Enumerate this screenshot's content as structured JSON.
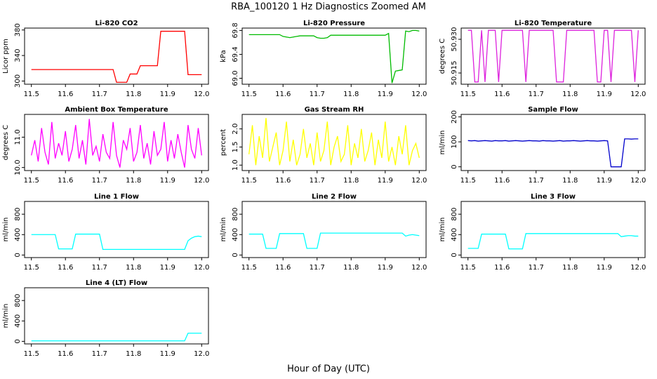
{
  "title": "RBA_100120  1 Hz Diagnostics Zoomed AM",
  "xlabel": "Hour of Day (UTC)",
  "chart_data": [
    {
      "type": "line",
      "title": "Li-820 CO2",
      "ylabel": "Licor ppm",
      "color": "#ff0000",
      "x": [
        11.5,
        11.51,
        11.52,
        11.53,
        11.54,
        11.55,
        11.56,
        11.57,
        11.58,
        11.59,
        11.6,
        11.61,
        11.62,
        11.63,
        11.64,
        11.65,
        11.66,
        11.67,
        11.68,
        11.69,
        11.7,
        11.71,
        11.72,
        11.73,
        11.74,
        11.75,
        11.76,
        11.77,
        11.78,
        11.79,
        11.8,
        11.81,
        11.82,
        11.83,
        11.84,
        11.85,
        11.86,
        11.87,
        11.88,
        11.89,
        11.9,
        11.91,
        11.92,
        11.93,
        11.94,
        11.95,
        11.96,
        11.97,
        11.98,
        11.99,
        12.0
      ],
      "values": [
        318,
        318,
        318,
        318,
        318,
        318,
        318,
        318,
        318,
        318,
        318,
        318,
        318,
        318,
        318,
        318,
        318,
        318,
        318,
        318,
        318,
        318,
        318,
        318,
        318,
        298,
        298,
        298,
        298,
        311,
        311,
        311,
        324,
        324,
        324,
        324,
        324,
        324,
        378,
        378,
        378,
        378,
        378,
        378,
        378,
        378,
        310,
        310,
        310,
        310,
        310
      ],
      "xlim": [
        11.48,
        12.02
      ],
      "xticks": [
        11.5,
        11.6,
        11.7,
        11.8,
        11.9,
        {
          "value": 12,
          "label": "12.0"
        }
      ],
      "ylim": [
        295,
        383
      ],
      "yticks": [
        300,
        340,
        380
      ]
    },
    {
      "type": "line",
      "title": "Li-820 Pressure",
      "ylabel": "kPa",
      "color": "#00bb00",
      "x": [
        11.5,
        11.51,
        11.52,
        11.53,
        11.54,
        11.55,
        11.56,
        11.57,
        11.58,
        11.59,
        11.6,
        11.61,
        11.62,
        11.63,
        11.64,
        11.65,
        11.66,
        11.67,
        11.68,
        11.69,
        11.7,
        11.71,
        11.72,
        11.73,
        11.74,
        11.75,
        11.76,
        11.77,
        11.78,
        11.79,
        11.8,
        11.81,
        11.82,
        11.83,
        11.84,
        11.85,
        11.86,
        11.87,
        11.88,
        11.89,
        11.9,
        11.91,
        11.92,
        11.93,
        11.94,
        11.95,
        11.96,
        11.97,
        11.98,
        11.99,
        12.0
      ],
      "values": [
        69.73,
        69.73,
        69.73,
        69.73,
        69.73,
        69.73,
        69.73,
        69.73,
        69.73,
        69.73,
        69.7,
        69.69,
        69.68,
        69.69,
        69.7,
        69.71,
        69.71,
        69.71,
        69.71,
        69.71,
        69.68,
        69.67,
        69.67,
        69.68,
        69.72,
        69.72,
        69.72,
        69.72,
        69.72,
        69.72,
        69.72,
        69.72,
        69.72,
        69.72,
        69.72,
        69.72,
        69.72,
        69.72,
        69.72,
        69.72,
        69.72,
        69.75,
        68.92,
        69.12,
        69.13,
        69.14,
        69.79,
        69.78,
        69.8,
        69.8,
        69.79
      ],
      "xlim": [
        11.48,
        12.02
      ],
      "xticks": [
        11.5,
        11.6,
        11.7,
        11.8,
        11.9,
        {
          "value": 12,
          "label": "12.0"
        }
      ],
      "ylim": [
        68.9,
        69.84
      ],
      "yticks": [
        {
          "value": 69,
          "label": "69.0"
        },
        69.4,
        69.8
      ]
    },
    {
      "type": "line",
      "title": "Li-820 Temperature",
      "ylabel": "degrees C",
      "color": "#dd22dd",
      "x": [
        11.5,
        11.51,
        11.52,
        11.53,
        11.54,
        11.55,
        11.56,
        11.57,
        11.58,
        11.59,
        11.6,
        11.61,
        11.62,
        11.63,
        11.64,
        11.65,
        11.66,
        11.67,
        11.68,
        11.69,
        11.7,
        11.71,
        11.72,
        11.73,
        11.74,
        11.75,
        11.76,
        11.77,
        11.78,
        11.79,
        11.8,
        11.81,
        11.82,
        11.83,
        11.84,
        11.85,
        11.86,
        11.87,
        11.88,
        11.89,
        11.9,
        11.91,
        11.92,
        11.93,
        11.94,
        11.95,
        11.96,
        11.97,
        11.98,
        11.99,
        12.0
      ],
      "values": [
        50.934,
        50.934,
        50.911,
        50.911,
        50.934,
        50.911,
        50.934,
        50.934,
        50.934,
        50.911,
        50.934,
        50.934,
        50.934,
        50.934,
        50.934,
        50.934,
        50.934,
        50.911,
        50.934,
        50.934,
        50.934,
        50.934,
        50.934,
        50.934,
        50.934,
        50.934,
        50.911,
        50.911,
        50.911,
        50.934,
        50.934,
        50.934,
        50.934,
        50.934,
        50.934,
        50.934,
        50.934,
        50.934,
        50.911,
        50.911,
        50.934,
        50.934,
        50.911,
        50.934,
        50.934,
        50.934,
        50.934,
        50.934,
        50.934,
        50.911,
        50.934
      ],
      "xlim": [
        11.48,
        12.02
      ],
      "xticks": [
        11.5,
        11.6,
        11.7,
        11.8,
        11.9,
        {
          "value": 12,
          "label": "12.0"
        }
      ],
      "ylim": [
        50.91,
        50.935
      ],
      "yticks": [
        50.915,
        {
          "value": 50.93,
          "label": "50.930"
        }
      ]
    },
    {
      "type": "line",
      "title": "Ambient Box Temperature",
      "ylabel": "degrees C",
      "color": "#ff00ff",
      "x": [
        11.5,
        11.51,
        11.52,
        11.53,
        11.54,
        11.55,
        11.56,
        11.57,
        11.58,
        11.59,
        11.6,
        11.61,
        11.62,
        11.63,
        11.64,
        11.65,
        11.66,
        11.67,
        11.68,
        11.69,
        11.7,
        11.71,
        11.72,
        11.73,
        11.74,
        11.75,
        11.76,
        11.77,
        11.78,
        11.79,
        11.8,
        11.81,
        11.82,
        11.83,
        11.84,
        11.85,
        11.86,
        11.87,
        11.88,
        11.89,
        11.9,
        11.91,
        11.92,
        11.93,
        11.94,
        11.95,
        11.96,
        11.97,
        11.98,
        11.99,
        12.0
      ],
      "values": [
        10.4,
        10.9,
        10.2,
        11.3,
        10.5,
        10.1,
        11.5,
        10.3,
        10.8,
        10.4,
        11.2,
        10.2,
        10.6,
        11.4,
        10.3,
        10.9,
        10.1,
        11.6,
        10.4,
        10.7,
        10.2,
        11.1,
        10.5,
        10.3,
        11.5,
        10.4,
        10.0,
        10.9,
        10.6,
        11.3,
        10.2,
        10.5,
        11.4,
        10.3,
        10.8,
        10.1,
        11.2,
        10.4,
        10.6,
        11.5,
        10.2,
        10.9,
        10.3,
        11.1,
        10.5,
        10.0,
        11.4,
        10.6,
        10.3,
        11.3,
        10.4
      ],
      "xlim": [
        11.48,
        12.02
      ],
      "xticks": [
        11.5,
        11.6,
        11.7,
        11.8,
        11.9,
        {
          "value": 12,
          "label": "12.0"
        }
      ],
      "ylim": [
        9.9,
        11.75
      ],
      "yticks": [
        {
          "value": 10,
          "label": "10.0"
        },
        {
          "value": 11,
          "label": "11.0"
        }
      ]
    },
    {
      "type": "line",
      "title": "Gas Stream RH",
      "ylabel": "percent",
      "color": "#ffff00",
      "x": [
        11.5,
        11.51,
        11.52,
        11.53,
        11.54,
        11.55,
        11.56,
        11.57,
        11.58,
        11.59,
        11.6,
        11.61,
        11.62,
        11.63,
        11.64,
        11.65,
        11.66,
        11.67,
        11.68,
        11.69,
        11.7,
        11.71,
        11.72,
        11.73,
        11.74,
        11.75,
        11.76,
        11.77,
        11.78,
        11.79,
        11.8,
        11.81,
        11.82,
        11.83,
        11.84,
        11.85,
        11.86,
        11.87,
        11.88,
        11.89,
        11.9,
        11.91,
        11.92,
        11.93,
        11.94,
        11.95,
        11.96,
        11.97,
        11.98,
        11.99,
        12.0
      ],
      "values": [
        1.3,
        2.1,
        1.0,
        1.8,
        1.2,
        2.3,
        1.1,
        1.5,
        1.9,
        1.0,
        1.4,
        2.2,
        1.1,
        1.7,
        1.0,
        1.3,
        2.0,
        1.2,
        1.6,
        1.0,
        1.9,
        1.1,
        1.4,
        2.2,
        1.0,
        1.5,
        1.8,
        1.1,
        1.3,
        2.1,
        1.0,
        1.6,
        1.2,
        2.0,
        1.1,
        1.4,
        1.9,
        1.0,
        1.7,
        1.2,
        2.2,
        1.1,
        1.5,
        1.0,
        1.8,
        1.3,
        2.1,
        1.0,
        1.4,
        1.6,
        1.2
      ],
      "xlim": [
        11.48,
        12.02
      ],
      "xticks": [
        11.5,
        11.6,
        11.7,
        11.8,
        11.9,
        {
          "value": 12,
          "label": "12.0"
        }
      ],
      "ylim": [
        0.85,
        2.4
      ],
      "yticks": [
        {
          "value": 1,
          "label": "1.0"
        },
        1.5,
        {
          "value": 2,
          "label": "2.0"
        }
      ]
    },
    {
      "type": "line",
      "title": "Sample Flow",
      "ylabel": "ml/min",
      "color": "#0000cc",
      "x": [
        11.5,
        11.51,
        11.52,
        11.53,
        11.54,
        11.55,
        11.56,
        11.57,
        11.58,
        11.59,
        11.6,
        11.61,
        11.62,
        11.63,
        11.64,
        11.65,
        11.66,
        11.67,
        11.68,
        11.69,
        11.7,
        11.71,
        11.72,
        11.73,
        11.74,
        11.75,
        11.76,
        11.77,
        11.78,
        11.79,
        11.8,
        11.81,
        11.82,
        11.83,
        11.84,
        11.85,
        11.86,
        11.87,
        11.88,
        11.89,
        11.9,
        11.91,
        11.92,
        11.93,
        11.94,
        11.95,
        11.96,
        11.97,
        11.98,
        11.99,
        12.0
      ],
      "values": [
        105,
        104,
        105,
        103,
        104,
        105,
        104,
        103,
        105,
        104,
        104,
        105,
        103,
        104,
        105,
        104,
        103,
        104,
        105,
        104,
        104,
        103,
        105,
        104,
        104,
        103,
        104,
        105,
        103,
        104,
        104,
        105,
        104,
        103,
        104,
        105,
        104,
        104,
        103,
        104,
        105,
        104,
        0,
        0,
        0,
        0,
        112,
        112,
        111,
        112,
        112
      ],
      "xlim": [
        11.48,
        12.02
      ],
      "xticks": [
        11.5,
        11.6,
        11.7,
        11.8,
        11.9,
        {
          "value": 12,
          "label": "12.0"
        }
      ],
      "ylim": [
        -15,
        210
      ],
      "yticks": [
        0,
        100,
        200
      ]
    },
    {
      "type": "line",
      "title": "Line 1 Flow",
      "ylabel": "ml/min",
      "color": "#00ffff",
      "x": [
        11.5,
        11.51,
        11.52,
        11.53,
        11.54,
        11.55,
        11.56,
        11.57,
        11.58,
        11.59,
        11.6,
        11.61,
        11.62,
        11.63,
        11.64,
        11.65,
        11.66,
        11.67,
        11.68,
        11.69,
        11.7,
        11.71,
        11.72,
        11.73,
        11.74,
        11.75,
        11.76,
        11.77,
        11.78,
        11.79,
        11.8,
        11.81,
        11.82,
        11.83,
        11.84,
        11.85,
        11.86,
        11.87,
        11.88,
        11.89,
        11.9,
        11.91,
        11.92,
        11.93,
        11.94,
        11.95,
        11.96,
        11.97,
        11.98,
        11.99,
        12.0
      ],
      "values": [
        400,
        400,
        400,
        400,
        400,
        400,
        400,
        400,
        120,
        120,
        120,
        120,
        120,
        410,
        410,
        410,
        410,
        410,
        410,
        410,
        410,
        110,
        110,
        110,
        110,
        110,
        110,
        110,
        110,
        110,
        110,
        110,
        110,
        110,
        110,
        110,
        110,
        110,
        110,
        110,
        110,
        110,
        110,
        110,
        110,
        110,
        280,
        330,
        360,
        370,
        360
      ],
      "xlim": [
        11.48,
        12.02
      ],
      "xticks": [
        11.5,
        11.6,
        11.7,
        11.8,
        11.9,
        {
          "value": 12,
          "label": "12.0"
        }
      ],
      "ylim": [
        -50,
        1050
      ],
      "yticks": [
        0,
        400,
        800
      ]
    },
    {
      "type": "line",
      "title": "Line 2 Flow",
      "ylabel": "ml/min",
      "color": "#00ffff",
      "x": [
        11.5,
        11.51,
        11.52,
        11.53,
        11.54,
        11.55,
        11.56,
        11.57,
        11.58,
        11.59,
        11.6,
        11.61,
        11.62,
        11.63,
        11.64,
        11.65,
        11.66,
        11.67,
        11.68,
        11.69,
        11.7,
        11.71,
        11.72,
        11.73,
        11.74,
        11.75,
        11.76,
        11.77,
        11.78,
        11.79,
        11.8,
        11.81,
        11.82,
        11.83,
        11.84,
        11.85,
        11.86,
        11.87,
        11.88,
        11.89,
        11.9,
        11.91,
        11.92,
        11.93,
        11.94,
        11.95,
        11.96,
        11.97,
        11.98,
        11.99,
        12.0
      ],
      "values": [
        410,
        410,
        410,
        410,
        410,
        130,
        130,
        130,
        130,
        420,
        420,
        420,
        420,
        420,
        420,
        420,
        420,
        130,
        130,
        130,
        130,
        430,
        430,
        430,
        430,
        430,
        430,
        430,
        430,
        430,
        430,
        430,
        430,
        430,
        430,
        430,
        430,
        430,
        430,
        430,
        430,
        430,
        430,
        430,
        430,
        430,
        370,
        390,
        400,
        390,
        380
      ],
      "xlim": [
        11.48,
        12.02
      ],
      "xticks": [
        11.5,
        11.6,
        11.7,
        11.8,
        11.9,
        {
          "value": 12,
          "label": "12.0"
        }
      ],
      "ylim": [
        -50,
        1050
      ],
      "yticks": [
        0,
        400,
        800
      ]
    },
    {
      "type": "line",
      "title": "Line 3 Flow",
      "ylabel": "ml/min",
      "color": "#00ffff",
      "x": [
        11.5,
        11.51,
        11.52,
        11.53,
        11.54,
        11.55,
        11.56,
        11.57,
        11.58,
        11.59,
        11.6,
        11.61,
        11.62,
        11.63,
        11.64,
        11.65,
        11.66,
        11.67,
        11.68,
        11.69,
        11.7,
        11.71,
        11.72,
        11.73,
        11.74,
        11.75,
        11.76,
        11.77,
        11.78,
        11.79,
        11.8,
        11.81,
        11.82,
        11.83,
        11.84,
        11.85,
        11.86,
        11.87,
        11.88,
        11.89,
        11.9,
        11.91,
        11.92,
        11.93,
        11.94,
        11.95,
        11.96,
        11.97,
        11.98,
        11.99,
        12.0
      ],
      "values": [
        130,
        130,
        130,
        130,
        410,
        410,
        410,
        410,
        410,
        410,
        410,
        410,
        120,
        120,
        120,
        120,
        120,
        420,
        420,
        420,
        420,
        420,
        420,
        420,
        420,
        420,
        420,
        420,
        420,
        420,
        420,
        420,
        420,
        420,
        420,
        420,
        420,
        420,
        420,
        420,
        420,
        420,
        420,
        420,
        420,
        360,
        370,
        380,
        380,
        370,
        370
      ],
      "xlim": [
        11.48,
        12.02
      ],
      "xticks": [
        11.5,
        11.6,
        11.7,
        11.8,
        11.9,
        {
          "value": 12,
          "label": "12.0"
        }
      ],
      "ylim": [
        -50,
        1050
      ],
      "yticks": [
        0,
        400,
        800
      ]
    },
    {
      "type": "line",
      "title": "Line 4 (LT) Flow",
      "ylabel": "ml/min",
      "color": "#00ffff",
      "x": [
        11.5,
        11.51,
        11.52,
        11.53,
        11.54,
        11.55,
        11.56,
        11.57,
        11.58,
        11.59,
        11.6,
        11.61,
        11.62,
        11.63,
        11.64,
        11.65,
        11.66,
        11.67,
        11.68,
        11.69,
        11.7,
        11.71,
        11.72,
        11.73,
        11.74,
        11.75,
        11.76,
        11.77,
        11.78,
        11.79,
        11.8,
        11.81,
        11.82,
        11.83,
        11.84,
        11.85,
        11.86,
        11.87,
        11.88,
        11.89,
        11.9,
        11.91,
        11.92,
        11.93,
        11.94,
        11.95,
        11.96,
        11.97,
        11.98,
        11.99,
        12.0
      ],
      "values": [
        10,
        10,
        10,
        10,
        10,
        10,
        10,
        10,
        10,
        10,
        10,
        10,
        10,
        10,
        10,
        10,
        10,
        10,
        10,
        10,
        10,
        10,
        10,
        10,
        10,
        10,
        10,
        10,
        10,
        10,
        10,
        10,
        10,
        10,
        10,
        10,
        10,
        10,
        10,
        10,
        10,
        10,
        10,
        10,
        10,
        10,
        160,
        160,
        160,
        160,
        160
      ],
      "xlim": [
        11.48,
        12.02
      ],
      "xticks": [
        11.5,
        11.6,
        11.7,
        11.8,
        11.9,
        {
          "value": 12,
          "label": "12.0"
        }
      ],
      "ylim": [
        -50,
        1050
      ],
      "yticks": [
        0,
        400,
        800
      ]
    }
  ]
}
